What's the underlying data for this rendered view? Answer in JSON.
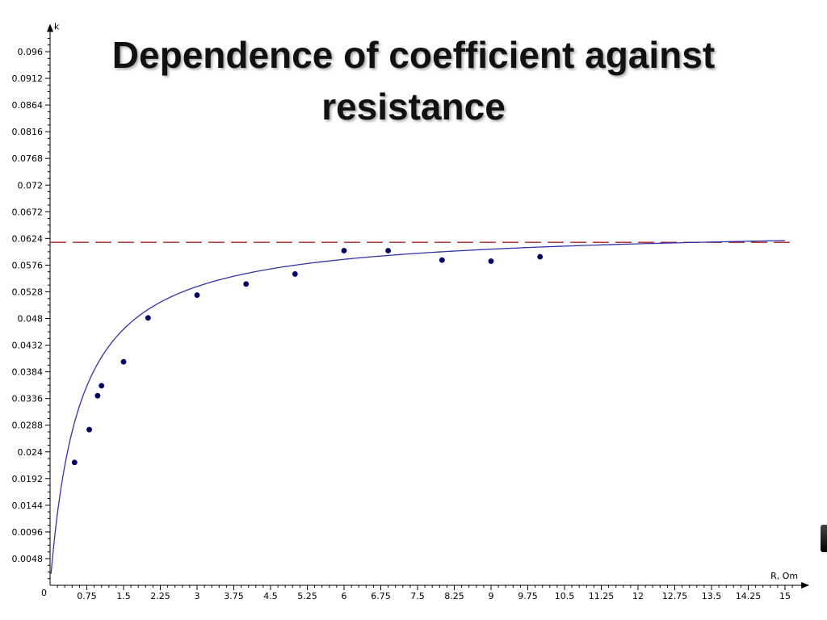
{
  "slide": {
    "title": "Dependence of coefficient against resistance"
  },
  "chart_data": {
    "type": "scatter",
    "title": "Dependence of coefficient against resistance",
    "xlabel": "R, Om",
    "ylabel": "k",
    "xlim": [
      0,
      15.2
    ],
    "ylim": [
      0,
      0.0984
    ],
    "origin_label": "0",
    "x_ticks": [
      0.75,
      1.5,
      2.25,
      3,
      3.75,
      4.5,
      5.25,
      6,
      6.75,
      7.5,
      8.25,
      9,
      9.75,
      10.5,
      11.25,
      12,
      12.75,
      13.5,
      14.25,
      15
    ],
    "x_tick_labels": [
      "0.75",
      "1.5",
      "2.25",
      "3",
      "3.75",
      "4.5",
      "5.25",
      "6",
      "6.75",
      "7.5",
      "8.25",
      "9",
      "9.75",
      "10.5",
      "11.25",
      "12",
      "12.75",
      "13.5",
      "14.25",
      "15"
    ],
    "y_ticks": [
      0.0048,
      0.0096,
      0.0144,
      0.0192,
      0.024,
      0.0288,
      0.0336,
      0.0384,
      0.0432,
      0.048,
      0.0528,
      0.0576,
      0.0624,
      0.0672,
      0.072,
      0.0768,
      0.0816,
      0.0864,
      0.0912,
      0.096
    ],
    "y_tick_labels": [
      "0.0048",
      "0.0096",
      "0.0144",
      "0.0192",
      "0.024",
      "0.0288",
      "0.0336",
      "0.0384",
      "0.0432",
      "0.048",
      "0.0528",
      "0.0576",
      "0.0624",
      "0.0672",
      "0.072",
      "0.0768",
      "0.0816",
      "0.0864",
      "0.0912",
      "0.096"
    ],
    "series": [
      {
        "x": [
          0.5,
          0.8,
          0.97,
          1.05,
          1.5,
          2.0,
          3.0,
          4.0,
          5.0,
          6.0,
          6.9,
          8.0,
          9.0,
          10.0
        ],
        "y": [
          0.0221,
          0.028,
          0.0341,
          0.0359,
          0.0402,
          0.0481,
          0.0522,
          0.0542,
          0.056,
          0.0602,
          0.0602,
          0.0585,
          0.0583,
          0.0591
        ],
        "color": "#000066"
      }
    ],
    "fit_curve": {
      "equation_form": "k = a*R/(b+R)",
      "a": 0.0645,
      "b": 0.6,
      "x_range": [
        0.02,
        15
      ],
      "color": "#3333aa"
    },
    "asymptote": {
      "y": 0.0617,
      "style": "dashed",
      "color": "#aa2222"
    },
    "grid": false,
    "legend": "none"
  }
}
